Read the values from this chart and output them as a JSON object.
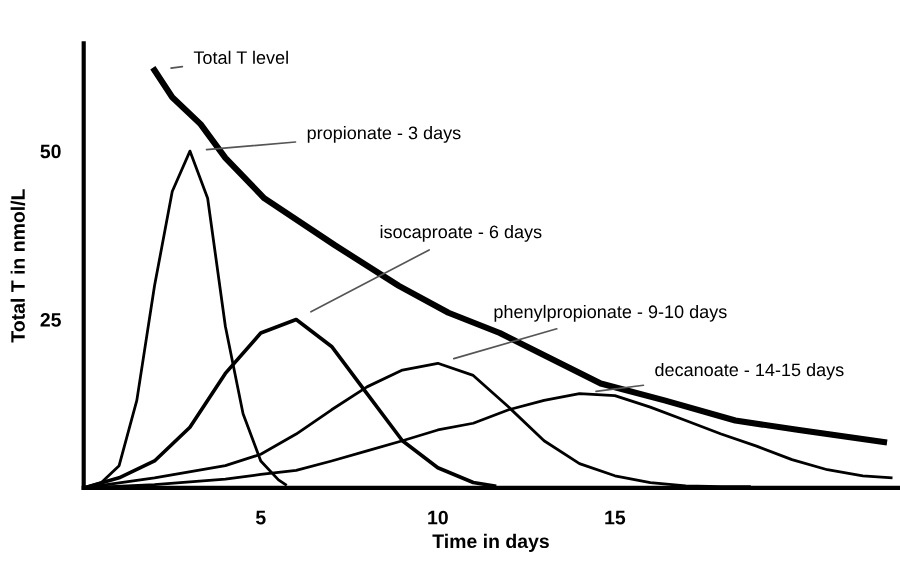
{
  "chart_data": {
    "type": "line",
    "xlabel": "Time in days",
    "ylabel": "Total T in nmol/L",
    "xlim": [
      0,
      23
    ],
    "ylim": [
      0,
      66
    ],
    "xticks": [
      5,
      10,
      15
    ],
    "yticks": [
      25,
      50
    ],
    "grid": false,
    "legend": false,
    "marker": "none",
    "line_style": "solid",
    "series": [
      {
        "name": "Total T level",
        "color": "#000000",
        "x": [
          2,
          2.5,
          3.3,
          4,
          5.1,
          7.1,
          8.9,
          10.3,
          11.75,
          14.6,
          16.4,
          18.4,
          20.2,
          22.6
        ],
        "values": [
          62,
          58,
          54,
          49,
          43,
          36,
          30,
          26,
          23,
          15.5,
          13,
          10,
          8.6,
          6.8
        ]
      },
      {
        "name": "propionate - 3 days",
        "color": "#000000",
        "x": [
          0,
          0.5,
          1,
          1.5,
          2,
          2.5,
          3,
          3.5,
          4,
          4.5,
          5,
          5.5,
          5.7
        ],
        "values": [
          0,
          0.8,
          3.3,
          13,
          30,
          44,
          50,
          43,
          24,
          11,
          4,
          1.2,
          0.5
        ]
      },
      {
        "name": "isocaproate - 6 days",
        "color": "#000000",
        "x": [
          0,
          1,
          2,
          3,
          4,
          5,
          6,
          7,
          8,
          9,
          10,
          11,
          11.6
        ],
        "values": [
          0,
          1.5,
          4,
          9,
          17,
          23,
          25,
          21,
          14,
          7,
          3,
          0.8,
          0.3
        ]
      },
      {
        "name": "phenylpropionate - 9-10 days",
        "color": "#000000",
        "x": [
          0,
          2,
          4,
          5,
          6,
          7,
          8,
          9,
          10,
          11,
          12,
          13,
          14,
          15,
          16,
          17,
          18,
          18.8
        ],
        "values": [
          0,
          1.5,
          3.3,
          5,
          8,
          11.6,
          15,
          17.5,
          18.5,
          16.7,
          12,
          7,
          3.6,
          1.8,
          0.8,
          0.3,
          0.2,
          0.2
        ]
      },
      {
        "name": "decanoate - 14-15 days",
        "color": "#000000",
        "x": [
          0,
          2,
          4,
          5,
          6,
          7,
          8,
          9,
          10,
          11,
          12,
          13,
          14,
          15,
          16,
          17,
          18,
          19,
          20,
          21,
          22,
          22.8
        ],
        "values": [
          0,
          0.5,
          1.3,
          2,
          2.6,
          4,
          5.5,
          7,
          8.6,
          9.6,
          11.6,
          13,
          14,
          13.7,
          12,
          10,
          8,
          6.2,
          4.2,
          2.7,
          1.8,
          1.5
        ]
      }
    ]
  }
}
